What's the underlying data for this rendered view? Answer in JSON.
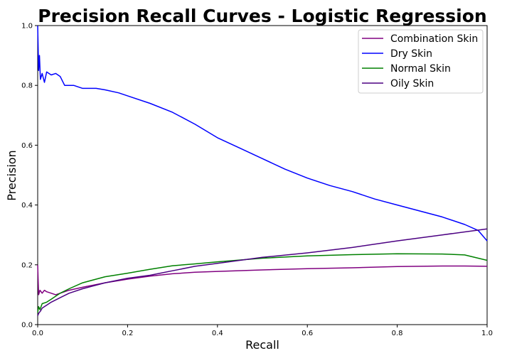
{
  "chart_data": {
    "type": "line",
    "title": "Precision Recall Curves - Logistic Regression",
    "xlabel": "Recall",
    "ylabel": "Precision",
    "xlim": [
      0,
      1
    ],
    "ylim": [
      0,
      1
    ],
    "xticks": [
      "0.0",
      "0.2",
      "0.4",
      "0.6",
      "0.8",
      "1.0"
    ],
    "yticks": [
      "0.0",
      "0.2",
      "0.4",
      "0.6",
      "0.8",
      "1.0"
    ],
    "grid": false,
    "legend_position": "top-right",
    "series": [
      {
        "name": "Combination Skin",
        "color": "#800080",
        "x": [
          0.0,
          0.002,
          0.005,
          0.01,
          0.015,
          0.02,
          0.03,
          0.04,
          0.05,
          0.07,
          0.1,
          0.15,
          0.2,
          0.25,
          0.3,
          0.35,
          0.4,
          0.5,
          0.6,
          0.7,
          0.8,
          0.9,
          0.95,
          1.0
        ],
        "y": [
          0.2,
          0.1,
          0.115,
          0.105,
          0.115,
          0.11,
          0.105,
          0.1,
          0.105,
          0.115,
          0.125,
          0.14,
          0.152,
          0.162,
          0.17,
          0.175,
          0.178,
          0.183,
          0.187,
          0.19,
          0.194,
          0.196,
          0.196,
          0.195
        ]
      },
      {
        "name": "Dry Skin",
        "color": "#0000ff",
        "x": [
          0.0,
          0.002,
          0.004,
          0.006,
          0.01,
          0.015,
          0.02,
          0.03,
          0.04,
          0.05,
          0.06,
          0.08,
          0.1,
          0.13,
          0.15,
          0.18,
          0.2,
          0.25,
          0.3,
          0.35,
          0.4,
          0.45,
          0.5,
          0.55,
          0.6,
          0.65,
          0.7,
          0.75,
          0.8,
          0.85,
          0.9,
          0.95,
          0.98,
          1.0
        ],
        "y": [
          1.0,
          0.85,
          0.9,
          0.82,
          0.84,
          0.81,
          0.845,
          0.835,
          0.84,
          0.83,
          0.8,
          0.8,
          0.79,
          0.79,
          0.785,
          0.775,
          0.765,
          0.74,
          0.71,
          0.67,
          0.625,
          0.59,
          0.555,
          0.52,
          0.49,
          0.465,
          0.445,
          0.42,
          0.4,
          0.38,
          0.36,
          0.335,
          0.315,
          0.28
        ]
      },
      {
        "name": "Normal Skin",
        "color": "#008000",
        "x": [
          0.0,
          0.002,
          0.005,
          0.01,
          0.02,
          0.03,
          0.05,
          0.07,
          0.1,
          0.15,
          0.2,
          0.25,
          0.3,
          0.35,
          0.4,
          0.5,
          0.6,
          0.7,
          0.8,
          0.9,
          0.95,
          1.0
        ],
        "y": [
          0.04,
          0.06,
          0.05,
          0.07,
          0.075,
          0.085,
          0.105,
          0.12,
          0.14,
          0.16,
          0.172,
          0.185,
          0.197,
          0.203,
          0.21,
          0.222,
          0.23,
          0.234,
          0.237,
          0.236,
          0.233,
          0.215
        ]
      },
      {
        "name": "Oily Skin",
        "color": "#4b0082",
        "x": [
          0.0,
          0.003,
          0.006,
          0.01,
          0.02,
          0.03,
          0.05,
          0.07,
          0.1,
          0.15,
          0.2,
          0.25,
          0.3,
          0.35,
          0.4,
          0.5,
          0.6,
          0.7,
          0.8,
          0.9,
          1.0
        ],
        "y": [
          0.03,
          0.04,
          0.045,
          0.055,
          0.065,
          0.075,
          0.09,
          0.105,
          0.12,
          0.14,
          0.155,
          0.165,
          0.18,
          0.195,
          0.205,
          0.225,
          0.24,
          0.258,
          0.28,
          0.3,
          0.32
        ]
      }
    ]
  }
}
